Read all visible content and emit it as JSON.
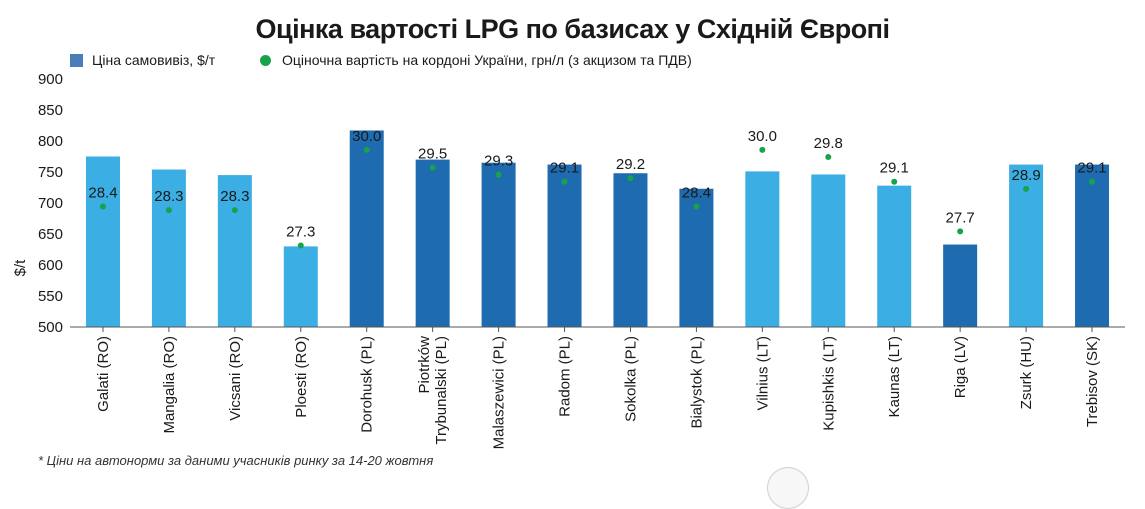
{
  "chart_data": {
    "type": "bar",
    "title": "Оцінка вартості LPG по базисах у Східній Європі",
    "ylabel": "$/t",
    "xlabel": "",
    "ylim": [
      500,
      900
    ],
    "yticks": [
      500,
      550,
      600,
      650,
      700,
      750,
      800,
      850,
      900
    ],
    "categories": [
      "Galati (RO)",
      "Mangalia (RO)",
      "Vicsani (RO)",
      "Ploesti (RO)",
      "Dorohusk (PL)",
      "Piotrków Trybunalski (PL)",
      "Malaszewici (PL)",
      "Radom (PL)",
      "Sokolka (PL)",
      "Bialystok (PL)",
      "Vilnius (LT)",
      "Kupishkis (LT)",
      "Kaunas (LT)",
      "Riga (LV)",
      "Zsurk (HU)",
      "Trebisov (SK)"
    ],
    "category_lines": [
      [
        "Galati (RO)"
      ],
      [
        "Mangalia (RO)"
      ],
      [
        "Vicsani (RO)"
      ],
      [
        "Ploesti (RO)"
      ],
      [
        "Dorohusk (PL)"
      ],
      [
        "Piotrków",
        "Trybunalski (PL)"
      ],
      [
        "Malaszewici (PL)"
      ],
      [
        "Radom (PL)"
      ],
      [
        "Sokolka (PL)"
      ],
      [
        "Bialystok (PL)"
      ],
      [
        "Vilnius (LT)"
      ],
      [
        "Kupishkis (LT)"
      ],
      [
        "Kaunas (LT)"
      ],
      [
        "Riga (LV)"
      ],
      [
        "Zsurk (HU)"
      ],
      [
        "Trebisov (SK)"
      ]
    ],
    "series": [
      {
        "name": "Ціна самовивіз, $/т",
        "kind": "bar",
        "values": [
          775,
          754,
          745,
          630,
          817,
          770,
          765,
          762,
          748,
          723,
          751,
          746,
          728,
          633,
          762,
          762
        ],
        "bar_colors": [
          "#3baee4",
          "#3baee4",
          "#3baee4",
          "#3baee4",
          "#1f6bb0",
          "#1f6bb0",
          "#1f6bb0",
          "#1f6bb0",
          "#1f6bb0",
          "#1f6bb0",
          "#3baee4",
          "#3baee4",
          "#3baee4",
          "#1f6bb0",
          "#3baee4",
          "#1f6bb0"
        ]
      },
      {
        "name": "Оціночна вартість на кордоні України, грн/л (з акцизом та ПДВ)",
        "kind": "dot",
        "values": [
          28.4,
          28.3,
          28.3,
          27.3,
          30.0,
          29.5,
          29.3,
          29.1,
          29.2,
          28.4,
          30.0,
          29.8,
          29.1,
          27.7,
          28.9,
          29.1
        ],
        "labels": [
          "28.4",
          "28.3",
          "28.3",
          "27.3",
          "30.0",
          "29.5",
          "29.3",
          "29.1",
          "29.2",
          "28.4",
          "30.0",
          "29.8",
          "29.1",
          "27.7",
          "28.9",
          "29.1"
        ],
        "secondary_axis_range": [
          25.0,
          32.0
        ]
      }
    ],
    "legend": {
      "placement": "top-left"
    }
  },
  "colors": {
    "dark_bar": "#1f6bb0",
    "light_bar": "#3baee4",
    "legend_swatch": "#4a7ebb",
    "dot": "#16a34a"
  },
  "footnote": "* Ціни на автонорми за даними учасників ринку за 14-20 жовтня"
}
